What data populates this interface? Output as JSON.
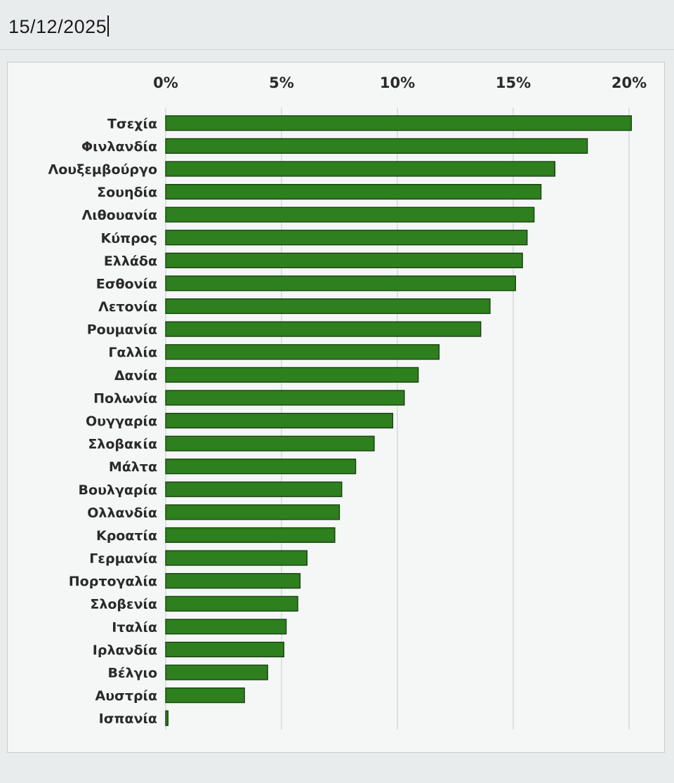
{
  "sheet": {
    "date_value": "15/12/2025"
  },
  "colors": {
    "bar_fill": "#2e7f1e",
    "bar_stroke": "#143d0c",
    "grid": "#cfd3d3",
    "text": "#2a2a2a"
  },
  "chart_data": {
    "type": "bar",
    "orientation": "horizontal",
    "title": "",
    "xlabel": "",
    "ylabel": "",
    "x_axis_position": "top",
    "xlim": [
      0,
      20
    ],
    "x_ticks": [
      0,
      5,
      10,
      15,
      20
    ],
    "x_tick_labels": [
      "0%",
      "5%",
      "10%",
      "15%",
      "20%"
    ],
    "grid": true,
    "legend": "none",
    "categories": [
      "Τσεχία",
      "Φινλανδία",
      "Λουξεμβούργο",
      "Σουηδία",
      "Λιθουανία",
      "Κύπρος",
      "Ελλάδα",
      "Εσθονία",
      "Λετονία",
      "Ρουμανία",
      "Γαλλία",
      "Δανία",
      "Πολωνία",
      "Ουγγαρία",
      "Σλοβακία",
      "Μάλτα",
      "Βουλγαρία",
      "Ολλανδία",
      "Κροατία",
      "Γερμανία",
      "Πορτογαλία",
      "Σλοβενία",
      "Ιταλία",
      "Ιρλανδία",
      "Βέλγιο",
      "Αυστρία",
      "Ισπανία"
    ],
    "values": [
      20.1,
      18.2,
      16.8,
      16.2,
      15.9,
      15.6,
      15.4,
      15.1,
      14.0,
      13.6,
      11.8,
      10.9,
      10.3,
      9.8,
      9.0,
      8.2,
      7.6,
      7.5,
      7.3,
      6.1,
      5.8,
      5.7,
      5.2,
      5.1,
      4.4,
      3.4,
      0.1
    ]
  }
}
